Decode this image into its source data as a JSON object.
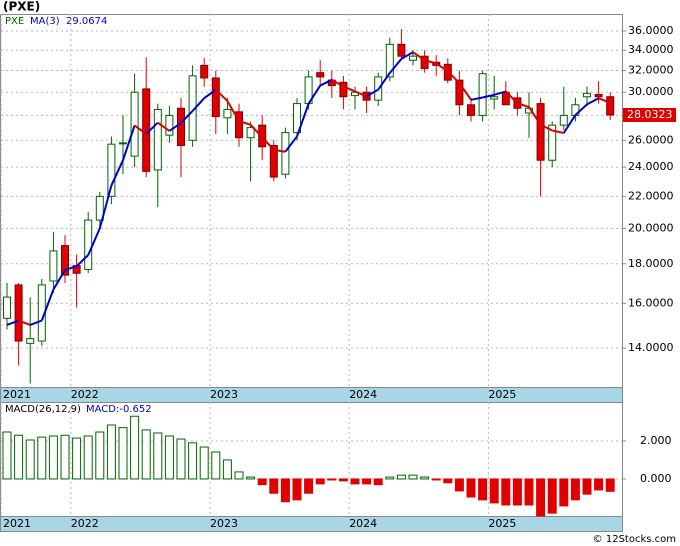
{
  "chart_data": [
    {
      "type": "candlestick",
      "title": "(PXE)",
      "ticker": "PXE",
      "ma_name": "MA(3)",
      "source": "© 12Stocks.com",
      "categories": [
        "2021",
        null,
        null,
        null,
        null,
        null,
        "2022",
        null,
        null,
        null,
        null,
        null,
        null,
        null,
        null,
        null,
        null,
        null,
        "2023",
        null,
        null,
        null,
        null,
        null,
        null,
        null,
        null,
        null,
        null,
        null,
        "2024",
        null,
        null,
        null,
        null,
        null,
        null,
        null,
        null,
        null,
        null,
        null,
        "2025",
        null,
        null,
        null,
        null,
        null,
        null,
        null,
        null,
        null,
        null
      ],
      "open": [
        15.3,
        16.9,
        14.2,
        14.3,
        17.1,
        19.0,
        17.9,
        17.7,
        20.5,
        22.0,
        25.8,
        24.8,
        30.3,
        23.8,
        26.4,
        28.6,
        26.0,
        32.5,
        31.3,
        27.8,
        28.3,
        26.2,
        27.2,
        25.6,
        23.5,
        26.6,
        29.0,
        31.8,
        31.1,
        30.9,
        29.7,
        30.0,
        29.3,
        31.4,
        34.6,
        33.0,
        33.4,
        32.8,
        32.6,
        31.1,
        28.9,
        28.0,
        29.4,
        30.0,
        29.5,
        28.2,
        29.0,
        24.5,
        27.2,
        28.0,
        29.6,
        29.8,
        29.6
      ],
      "high": [
        17.0,
        17.0,
        16.3,
        17.2,
        19.8,
        19.6,
        18.5,
        21.0,
        22.3,
        26.3,
        28.0,
        31.7,
        33.3,
        29.0,
        28.8,
        29.5,
        32.5,
        33.2,
        32.0,
        29.5,
        29.0,
        27.5,
        28.0,
        26.0,
        27.0,
        29.5,
        32.0,
        33.0,
        32.0,
        31.5,
        30.5,
        30.5,
        31.8,
        35.3,
        36.2,
        34.0,
        34.0,
        33.5,
        33.2,
        32.0,
        29.5,
        32.0,
        31.5,
        31.0,
        30.0,
        30.0,
        29.5,
        27.5,
        30.5,
        29.5,
        30.5,
        31.0,
        30.0
      ],
      "low": [
        14.8,
        13.3,
        12.6,
        14.1,
        16.5,
        17.0,
        15.8,
        17.5,
        20.0,
        21.5,
        23.5,
        24.0,
        23.3,
        21.3,
        25.8,
        23.3,
        25.5,
        30.5,
        26.5,
        26.5,
        25.5,
        23.0,
        24.5,
        23.0,
        23.2,
        26.0,
        28.5,
        30.5,
        29.5,
        28.5,
        28.5,
        28.2,
        28.8,
        31.0,
        33.0,
        32.5,
        31.8,
        31.5,
        30.8,
        28.0,
        27.5,
        27.5,
        28.5,
        29.0,
        28.0,
        26.2,
        22.0,
        24.0,
        26.8,
        27.5,
        28.8,
        29.0,
        27.6
      ],
      "close": [
        16.3,
        14.3,
        14.4,
        16.9,
        18.7,
        17.4,
        17.5,
        20.5,
        22.0,
        25.7,
        25.8,
        30.0,
        23.7,
        28.5,
        28.0,
        25.6,
        31.5,
        31.3,
        27.9,
        28.5,
        26.2,
        27.0,
        25.5,
        23.3,
        26.6,
        29.0,
        31.4,
        31.4,
        30.6,
        29.6,
        30.0,
        29.3,
        31.4,
        34.6,
        33.4,
        33.4,
        32.2,
        32.5,
        31.1,
        28.9,
        28.0,
        31.7,
        29.6,
        28.9,
        28.6,
        28.6,
        24.5,
        27.2,
        28.0,
        28.9,
        29.9,
        29.6,
        28.0323
      ],
      "ma": {
        "values": [
          15.0,
          15.2,
          15.0,
          15.2,
          16.67,
          17.67,
          17.87,
          18.47,
          20.0,
          22.73,
          24.5,
          27.17,
          26.5,
          27.4,
          26.73,
          27.37,
          28.37,
          29.47,
          30.23,
          29.23,
          27.53,
          27.23,
          26.23,
          25.27,
          25.13,
          26.3,
          29.0,
          30.6,
          31.13,
          30.53,
          30.07,
          29.63,
          30.23,
          31.77,
          33.13,
          33.8,
          33.0,
          32.7,
          31.93,
          30.83,
          29.33,
          29.53,
          29.77,
          30.07,
          29.03,
          28.7,
          27.23,
          26.77,
          26.57,
          28.03,
          28.93,
          29.47,
          29.0674
        ],
        "up_color": "#0000cc",
        "down_color": "#dd0000"
      },
      "up_color": "#006400",
      "down_color": "#e00000",
      "log_scale": true,
      "grid": true,
      "ylim": [
        12.47,
        37.87
      ],
      "yticks": [
        {
          "value": 14,
          "label": "14.0000"
        },
        {
          "value": 16,
          "label": "16.0000"
        },
        {
          "value": 18,
          "label": "18.0000"
        },
        {
          "value": 20,
          "label": "20.0000"
        },
        {
          "value": 22,
          "label": "22.0000"
        },
        {
          "value": 24,
          "label": "24.0000"
        },
        {
          "value": 26,
          "label": "26.0000"
        },
        {
          "value": 28,
          "label": "28.0000"
        },
        {
          "value": 30,
          "label": "30.0000"
        },
        {
          "value": 32,
          "label": "32.0000"
        },
        {
          "value": 34,
          "label": "34.0000"
        },
        {
          "value": 36,
          "label": "36.0000"
        }
      ]
    },
    {
      "type": "bar",
      "title": "MACD(26,12,9)",
      "legend_value": "MACD:-0.652",
      "values": [
        2.47,
        2.3,
        2.05,
        2.2,
        2.26,
        2.3,
        2.15,
        2.26,
        2.47,
        2.84,
        2.7,
        3.3,
        2.58,
        2.42,
        2.26,
        2.1,
        1.9,
        1.68,
        1.42,
        1.0,
        0.37,
        0.1,
        -0.3,
        -0.75,
        -1.2,
        -1.1,
        -0.75,
        -0.26,
        -0.05,
        -0.1,
        -0.26,
        -0.26,
        -0.3,
        0.1,
        0.2,
        0.2,
        0.1,
        -0.05,
        -0.2,
        -0.63,
        -0.95,
        -1.1,
        -1.26,
        -1.37,
        -1.37,
        -1.37,
        -1.95,
        -1.8,
        -1.42,
        -1.1,
        -0.8,
        -0.58,
        -0.652
      ],
      "up_color": "#006400",
      "down_color": "#e00000",
      "grid": true,
      "ylim": [
        -1.95,
        4.05
      ],
      "yticks": [
        {
          "value": 0,
          "label": "0.000"
        },
        {
          "value": 2,
          "label": "2.000"
        }
      ]
    }
  ]
}
